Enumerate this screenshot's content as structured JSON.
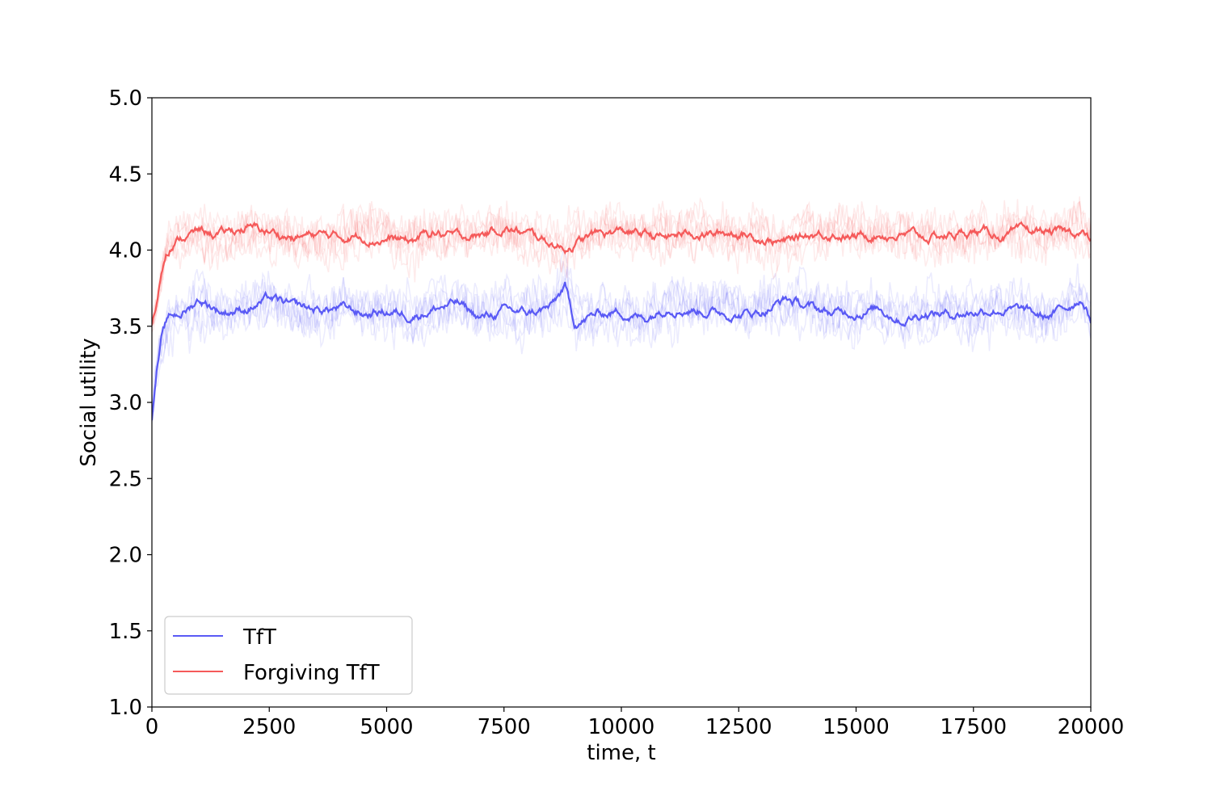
{
  "chart_data": {
    "type": "line",
    "title": "",
    "xlabel": "time, t",
    "ylabel": "Social utility",
    "xlim": [
      0,
      20000
    ],
    "ylim": [
      1.0,
      5.0
    ],
    "x_ticks": [
      0,
      2500,
      5000,
      7500,
      10000,
      12500,
      15000,
      17500,
      20000
    ],
    "x_tick_labels": [
      "0",
      "2500",
      "5000",
      "7500",
      "10000",
      "12500",
      "15000",
      "17500",
      "20000"
    ],
    "y_ticks": [
      1.0,
      1.5,
      2.0,
      2.5,
      3.0,
      3.5,
      4.0,
      4.5,
      5.0
    ],
    "y_tick_labels": [
      "1.0",
      "1.5",
      "2.0",
      "2.5",
      "3.0",
      "3.5",
      "4.0",
      "4.5",
      "5.0"
    ],
    "grid": false,
    "legend_position": "lower-left",
    "x": [
      0,
      100,
      200,
      300,
      400,
      600,
      800,
      1000,
      1500,
      2000,
      2500,
      3000,
      3500,
      4000,
      4500,
      5000,
      5500,
      6000,
      6500,
      7000,
      7500,
      8000,
      8500,
      8800,
      9000,
      9500,
      10000,
      10500,
      11000,
      11500,
      12000,
      12500,
      13000,
      13500,
      14000,
      14500,
      15000,
      15500,
      16000,
      16500,
      17000,
      17500,
      18000,
      18500,
      19000,
      19500,
      19800,
      20000
    ],
    "series": [
      {
        "name": "TfT",
        "color": "#5a5af5",
        "values": [
          2.9,
          3.2,
          3.4,
          3.5,
          3.55,
          3.58,
          3.62,
          3.68,
          3.6,
          3.62,
          3.68,
          3.62,
          3.6,
          3.62,
          3.58,
          3.6,
          3.58,
          3.62,
          3.65,
          3.55,
          3.6,
          3.58,
          3.62,
          3.75,
          3.52,
          3.58,
          3.6,
          3.55,
          3.65,
          3.62,
          3.6,
          3.58,
          3.6,
          3.68,
          3.62,
          3.58,
          3.6,
          3.62,
          3.55,
          3.6,
          3.58,
          3.6,
          3.62,
          3.6,
          3.55,
          3.62,
          3.7,
          3.55
        ]
      },
      {
        "name": "Forgiving TfT",
        "color": "#f55a5a",
        "values": [
          3.5,
          3.65,
          3.85,
          4.0,
          4.05,
          4.08,
          4.1,
          4.12,
          4.1,
          4.15,
          4.12,
          4.08,
          4.1,
          4.08,
          4.1,
          4.08,
          4.05,
          4.12,
          4.08,
          4.1,
          4.15,
          4.1,
          4.05,
          4.02,
          4.05,
          4.1,
          4.12,
          4.1,
          4.08,
          4.12,
          4.1,
          4.12,
          4.08,
          4.05,
          4.1,
          4.12,
          4.08,
          4.12,
          4.1,
          4.08,
          4.1,
          4.12,
          4.1,
          4.1,
          4.12,
          4.1,
          4.12,
          4.05
        ]
      }
    ]
  }
}
